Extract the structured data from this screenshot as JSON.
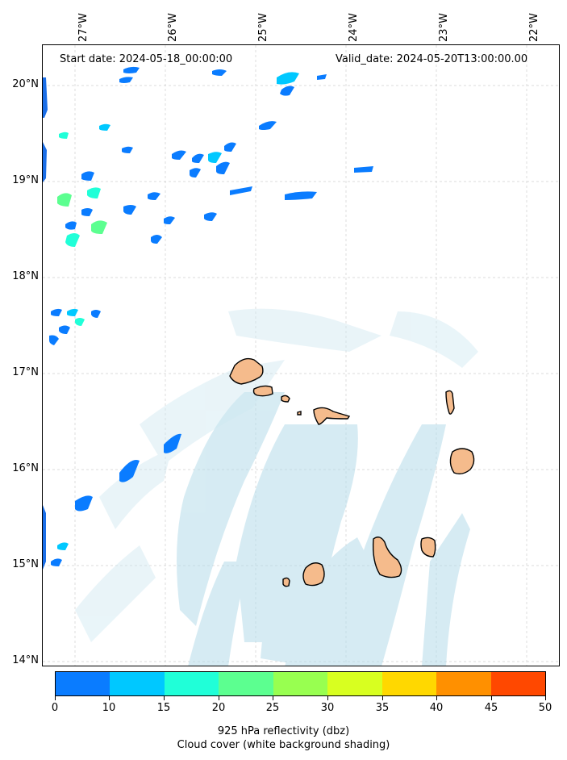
{
  "header": {
    "start_date": "Start date: 2024-05-18_00:00:00",
    "valid_date": "Valid_date: 2024-05-20T13:00:00.00"
  },
  "axes": {
    "lon_labels": [
      "27°W",
      "26°W",
      "25°W",
      "24°W",
      "23°W",
      "22°W"
    ],
    "lat_labels": [
      "20°N",
      "19°N",
      "18°N",
      "17°N",
      "16°N",
      "15°N",
      "14°N"
    ],
    "grid": true
  },
  "colorbar": {
    "ticks": [
      "0",
      "10",
      "15",
      "20",
      "25",
      "30",
      "35",
      "40",
      "45",
      "50"
    ],
    "colors": [
      "#0a7cff",
      "#00c8ff",
      "#20ffd8",
      "#5cff90",
      "#98ff50",
      "#d8ff20",
      "#ffd800",
      "#ff9000",
      "#ff4800"
    ],
    "title_line1": "925 hPa reflectivity (dbz)",
    "title_line2": "Cloud cover (white background shading)"
  },
  "islands": [
    {
      "name": "",
      "lon": -25.05,
      "lat": 17.05
    },
    {
      "name": "",
      "lon": -24.95,
      "lat": 16.8
    },
    {
      "name": "",
      "lon": -24.4,
      "lat": 16.58
    },
    {
      "name": "",
      "lon": -22.9,
      "lat": 16.72
    },
    {
      "name": "",
      "lon": -22.8,
      "lat": 16.1
    },
    {
      "name": "",
      "lon": -24.32,
      "lat": 14.88
    },
    {
      "name": "",
      "lon": -23.6,
      "lat": 15.1
    },
    {
      "name": "",
      "lon": -23.15,
      "lat": 15.2
    },
    {
      "name": "",
      "lon": -24.7,
      "lat": 14.87
    }
  ]
}
